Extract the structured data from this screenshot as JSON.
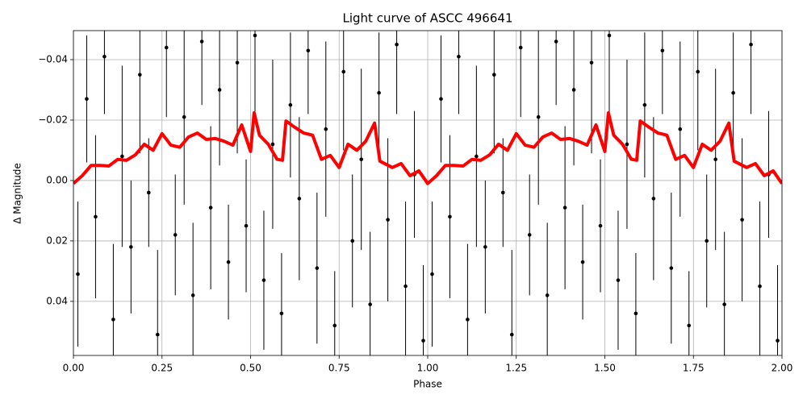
{
  "chart_data": {
    "type": "scatter",
    "title": "Light curve of ASCC 496641",
    "x_label": "Phase",
    "y_label": "Δ Magnitude",
    "xlim": [
      0,
      2
    ],
    "ylim": [
      -0.0496,
      0.0579
    ],
    "y_inverted": true,
    "grid": true,
    "xticks": [
      {
        "value": 0,
        "label": "0.00"
      },
      0.25,
      {
        "value": 0.5,
        "label": "0.50"
      },
      0.75,
      {
        "value": 1,
        "label": "1.00"
      },
      1.25,
      {
        "value": 1.5,
        "label": "1.50"
      },
      1.75,
      {
        "value": 2,
        "label": "2.00"
      }
    ],
    "yticks": [
      {
        "value": -0.04,
        "label": "−0.04"
      },
      {
        "value": -0.02,
        "label": "−0.02"
      },
      {
        "value": 0,
        "label": "0.00"
      },
      {
        "value": 0.02,
        "label": "0.02"
      },
      {
        "value": 0.04,
        "label": "0.04"
      }
    ],
    "points": {
      "color": "#000000",
      "x": [
        0.0125,
        0.0375,
        0.0625,
        0.0875,
        0.1125,
        0.1375,
        0.1625,
        0.1875,
        0.2125,
        0.2375,
        0.2625,
        0.2875,
        0.3125,
        0.3375,
        0.3625,
        0.3875,
        0.4125,
        0.4375,
        0.4625,
        0.4875,
        0.5125,
        0.5375,
        0.5625,
        0.5875,
        0.6125,
        0.6375,
        0.6625,
        0.6875,
        0.7125,
        0.7375,
        0.7625,
        0.7875,
        0.8125,
        0.8375,
        0.8625,
        0.8875,
        0.9125,
        0.9375,
        0.9625,
        0.9875,
        1.0125,
        1.0375,
        1.0625,
        1.0875,
        1.1125,
        1.1375,
        1.1625,
        1.1875,
        1.2125,
        1.2375,
        1.2625,
        1.2875,
        1.3125,
        1.3375,
        1.3625,
        1.3875,
        1.4125,
        1.4375,
        1.4625,
        1.4875,
        1.5125,
        1.5375,
        1.5625,
        1.5875,
        1.6125,
        1.6375,
        1.6625,
        1.6875,
        1.7125,
        1.7375,
        1.7625,
        1.7875,
        1.8125,
        1.8375,
        1.8625,
        1.8875,
        1.9125,
        1.9375,
        1.9625,
        1.9875
      ],
      "y": [
        0.031,
        -0.027,
        0.012,
        -0.041,
        0.046,
        -0.008,
        0.022,
        -0.035,
        0.004,
        0.051,
        -0.044,
        0.018,
        -0.021,
        0.038,
        -0.046,
        0.009,
        -0.03,
        0.027,
        -0.039,
        0.015,
        -0.048,
        0.033,
        -0.012,
        0.044,
        -0.025,
        0.006,
        -0.043,
        0.029,
        -0.017,
        0.048,
        -0.036,
        0.02,
        -0.007,
        0.041,
        -0.029,
        0.013,
        -0.045,
        0.035,
        -0.002,
        0.053,
        0.031,
        -0.027,
        0.012,
        -0.041,
        0.046,
        -0.008,
        0.022,
        -0.035,
        0.004,
        0.051,
        -0.044,
        0.018,
        -0.021,
        0.038,
        -0.046,
        0.009,
        -0.03,
        0.027,
        -0.039,
        0.015,
        -0.048,
        0.033,
        -0.012,
        0.044,
        -0.025,
        0.006,
        -0.043,
        0.029,
        -0.017,
        0.048,
        -0.036,
        0.02,
        -0.007,
        0.041,
        -0.029,
        0.013,
        -0.045,
        0.035,
        -0.002,
        0.053
      ],
      "err": [
        0.024,
        0.021,
        0.027,
        0.019,
        0.025,
        0.03,
        0.022,
        0.026,
        0.018,
        0.028,
        0.023,
        0.02,
        0.029,
        0.024,
        0.021,
        0.027,
        0.025,
        0.019,
        0.03,
        0.022,
        0.026,
        0.023,
        0.028,
        0.02,
        0.024,
        0.027,
        0.021,
        0.025,
        0.029,
        0.018,
        0.026,
        0.022,
        0.03,
        0.024,
        0.02,
        0.027,
        0.023,
        0.028,
        0.021,
        0.025,
        0.024,
        0.021,
        0.027,
        0.019,
        0.025,
        0.03,
        0.022,
        0.026,
        0.018,
        0.028,
        0.023,
        0.02,
        0.029,
        0.024,
        0.021,
        0.027,
        0.025,
        0.019,
        0.03,
        0.022,
        0.026,
        0.023,
        0.028,
        0.02,
        0.024,
        0.027,
        0.021,
        0.025,
        0.029,
        0.018,
        0.026,
        0.022,
        0.03,
        0.024,
        0.02,
        0.027,
        0.023,
        0.028,
        0.021,
        0.025
      ]
    },
    "curve": {
      "color": "#ff0000",
      "x": [
        0,
        0.025,
        0.05,
        0.075,
        0.1,
        0.125,
        0.15,
        0.175,
        0.2,
        0.225,
        0.25,
        0.275,
        0.3,
        0.325,
        0.35,
        0.375,
        0.4,
        0.425,
        0.45,
        0.475,
        0.5,
        0.51,
        0.525,
        0.55,
        0.575,
        0.59,
        0.6,
        0.625,
        0.65,
        0.675,
        0.7,
        0.725,
        0.75,
        0.775,
        0.8,
        0.825,
        0.85,
        0.865,
        0.9,
        0.925,
        0.95,
        0.975,
        1,
        1.025,
        1.05,
        1.075,
        1.1,
        1.125,
        1.15,
        1.175,
        1.2,
        1.225,
        1.25,
        1.275,
        1.3,
        1.325,
        1.35,
        1.375,
        1.4,
        1.425,
        1.45,
        1.475,
        1.5,
        1.51,
        1.525,
        1.55,
        1.575,
        1.59,
        1.6,
        1.625,
        1.65,
        1.675,
        1.7,
        1.725,
        1.75,
        1.775,
        1.8,
        1.825,
        1.85,
        1.865,
        1.9,
        1.925,
        1.95,
        1.975,
        2
      ],
      "y": [
        0.001,
        -0.0016,
        -0.005,
        -0.005,
        -0.0048,
        -0.007,
        -0.0067,
        -0.0085,
        -0.012,
        -0.01,
        -0.0155,
        -0.0117,
        -0.011,
        -0.0144,
        -0.0157,
        -0.0136,
        -0.0139,
        -0.013,
        -0.0117,
        -0.0184,
        -0.0096,
        -0.0224,
        -0.015,
        -0.012,
        -0.007,
        -0.0067,
        -0.0197,
        -0.0176,
        -0.0157,
        -0.015,
        -0.007,
        -0.0083,
        -0.0043,
        -0.012,
        -0.01,
        -0.013,
        -0.019,
        -0.0064,
        -0.0043,
        -0.0056,
        -0.0016,
        -0.0032,
        0.001,
        -0.0016,
        -0.005,
        -0.005,
        -0.0048,
        -0.007,
        -0.0067,
        -0.0085,
        -0.012,
        -0.01,
        -0.0155,
        -0.0117,
        -0.011,
        -0.0144,
        -0.0157,
        -0.0136,
        -0.0139,
        -0.013,
        -0.0117,
        -0.0184,
        -0.0096,
        -0.0224,
        -0.015,
        -0.012,
        -0.007,
        -0.0067,
        -0.0197,
        -0.0176,
        -0.0157,
        -0.015,
        -0.007,
        -0.0083,
        -0.0043,
        -0.012,
        -0.01,
        -0.013,
        -0.019,
        -0.0064,
        -0.0043,
        -0.0056,
        -0.0016,
        -0.0032,
        0.001
      ]
    }
  }
}
